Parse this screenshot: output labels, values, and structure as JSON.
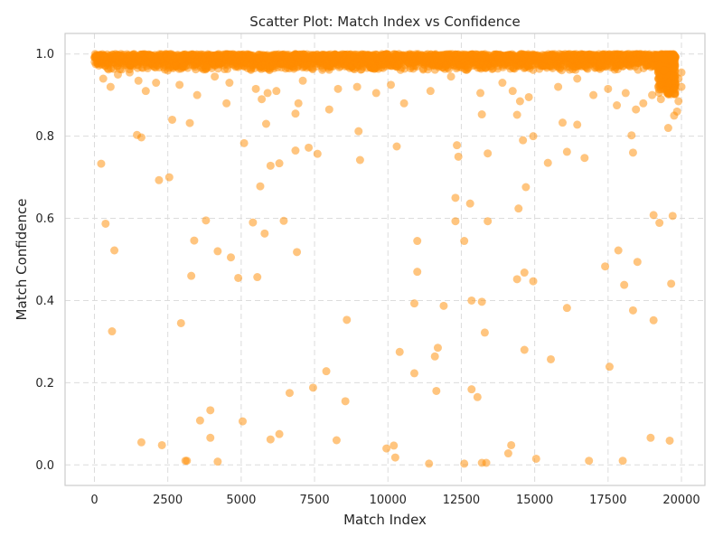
{
  "chart_data": {
    "type": "scatter",
    "title": "Scatter Plot: Match Index vs Confidence",
    "xlabel": "Match Index",
    "ylabel": "Match Confidence",
    "xlim": [
      -1000,
      20800
    ],
    "ylim": [
      -0.05,
      1.05
    ],
    "xticks": [
      0,
      2500,
      5000,
      7500,
      10000,
      12500,
      15000,
      17500,
      20000
    ],
    "yticks": [
      0.0,
      0.2,
      0.4,
      0.6,
      0.8,
      1.0
    ],
    "xtick_labels": [
      "0",
      "2500",
      "5000",
      "7500",
      "10000",
      "12500",
      "15000",
      "17500",
      "20000"
    ],
    "ytick_labels": [
      "0.0",
      "0.2",
      "0.4",
      "0.6",
      "0.8",
      "1.0"
    ],
    "grid": true,
    "marker_color": "#ff8c00",
    "marker_alpha": 0.5,
    "dense_band": {
      "x_range": [
        0,
        19800
      ],
      "y_range": [
        0.96,
        1.0
      ],
      "note": "approx. 19800 points concentrated near 1.0"
    },
    "points": [
      [
        230,
        0.733
      ],
      [
        380,
        0.587
      ],
      [
        600,
        0.325
      ],
      [
        680,
        0.522
      ],
      [
        1450,
        0.803
      ],
      [
        1600,
        0.797
      ],
      [
        1600,
        0.055
      ],
      [
        2200,
        0.693
      ],
      [
        2300,
        0.048
      ],
      [
        2550,
        0.7
      ],
      [
        2650,
        0.84
      ],
      [
        2950,
        0.345
      ],
      [
        3100,
        0.01
      ],
      [
        3150,
        0.01
      ],
      [
        3250,
        0.832
      ],
      [
        3300,
        0.46
      ],
      [
        3400,
        0.546
      ],
      [
        3600,
        0.108
      ],
      [
        3800,
        0.595
      ],
      [
        3950,
        0.133
      ],
      [
        3950,
        0.066
      ],
      [
        4200,
        0.52
      ],
      [
        4200,
        0.008
      ],
      [
        4650,
        0.505
      ],
      [
        4900,
        0.455
      ],
      [
        5050,
        0.106
      ],
      [
        5100,
        0.783
      ],
      [
        5400,
        0.59
      ],
      [
        5550,
        0.457
      ],
      [
        5650,
        0.678
      ],
      [
        5800,
        0.563
      ],
      [
        5850,
        0.83
      ],
      [
        6000,
        0.728
      ],
      [
        6000,
        0.062
      ],
      [
        6300,
        0.734
      ],
      [
        6300,
        0.075
      ],
      [
        6450,
        0.594
      ],
      [
        6650,
        0.175
      ],
      [
        6900,
        0.518
      ],
      [
        6850,
        0.765
      ],
      [
        7300,
        0.772
      ],
      [
        7450,
        0.188
      ],
      [
        7600,
        0.757
      ],
      [
        7900,
        0.228
      ],
      [
        8250,
        0.06
      ],
      [
        8550,
        0.155
      ],
      [
        8600,
        0.353
      ],
      [
        9000,
        0.812
      ],
      [
        9050,
        0.742
      ],
      [
        9950,
        0.04
      ],
      [
        10200,
        0.047
      ],
      [
        10250,
        0.018
      ],
      [
        10300,
        0.775
      ],
      [
        10400,
        0.275
      ],
      [
        10900,
        0.393
      ],
      [
        10900,
        0.223
      ],
      [
        11000,
        0.545
      ],
      [
        11000,
        0.47
      ],
      [
        11400,
        0.003
      ],
      [
        11600,
        0.264
      ],
      [
        11650,
        0.18
      ],
      [
        11700,
        0.285
      ],
      [
        11900,
        0.387
      ],
      [
        12300,
        0.65
      ],
      [
        12300,
        0.593
      ],
      [
        12350,
        0.778
      ],
      [
        12400,
        0.75
      ],
      [
        12600,
        0.545
      ],
      [
        12600,
        0.003
      ],
      [
        12800,
        0.636
      ],
      [
        12850,
        0.4
      ],
      [
        12850,
        0.184
      ],
      [
        13050,
        0.165
      ],
      [
        13200,
        0.853
      ],
      [
        13200,
        0.397
      ],
      [
        13300,
        0.322
      ],
      [
        13200,
        0.005
      ],
      [
        13350,
        0.005
      ],
      [
        13400,
        0.758
      ],
      [
        13400,
        0.593
      ],
      [
        14100,
        0.028
      ],
      [
        14200,
        0.048
      ],
      [
        14400,
        0.852
      ],
      [
        14400,
        0.452
      ],
      [
        14450,
        0.624
      ],
      [
        14600,
        0.79
      ],
      [
        14700,
        0.676
      ],
      [
        14650,
        0.468
      ],
      [
        14650,
        0.28
      ],
      [
        14950,
        0.8
      ],
      [
        14950,
        0.447
      ],
      [
        15050,
        0.015
      ],
      [
        15450,
        0.735
      ],
      [
        15550,
        0.257
      ],
      [
        15950,
        0.833
      ],
      [
        16100,
        0.762
      ],
      [
        16100,
        0.382
      ],
      [
        16450,
        0.828
      ],
      [
        16700,
        0.747
      ],
      [
        16850,
        0.01
      ],
      [
        17400,
        0.483
      ],
      [
        17550,
        0.239
      ],
      [
        17850,
        0.522
      ],
      [
        18000,
        0.01
      ],
      [
        18050,
        0.438
      ],
      [
        18300,
        0.802
      ],
      [
        18350,
        0.76
      ],
      [
        18350,
        0.376
      ],
      [
        18500,
        0.494
      ],
      [
        18950,
        0.066
      ],
      [
        19050,
        0.608
      ],
      [
        19050,
        0.352
      ],
      [
        19250,
        0.589
      ],
      [
        19550,
        0.82
      ],
      [
        19600,
        0.059
      ],
      [
        19650,
        0.441
      ],
      [
        19700,
        0.606
      ],
      [
        19750,
        0.85
      ],
      [
        19850,
        0.86
      ],
      [
        300,
        0.94
      ],
      [
        550,
        0.92
      ],
      [
        800,
        0.95
      ],
      [
        1200,
        0.955
      ],
      [
        1500,
        0.935
      ],
      [
        1750,
        0.91
      ],
      [
        2100,
        0.93
      ],
      [
        2500,
        0.96
      ],
      [
        2900,
        0.925
      ],
      [
        3500,
        0.9
      ],
      [
        4100,
        0.945
      ],
      [
        4500,
        0.88
      ],
      [
        4600,
        0.93
      ],
      [
        5500,
        0.915
      ],
      [
        5700,
        0.89
      ],
      [
        5900,
        0.905
      ],
      [
        6200,
        0.91
      ],
      [
        6850,
        0.855
      ],
      [
        6950,
        0.88
      ],
      [
        7100,
        0.935
      ],
      [
        8000,
        0.865
      ],
      [
        8300,
        0.915
      ],
      [
        8950,
        0.92
      ],
      [
        9600,
        0.905
      ],
      [
        10100,
        0.925
      ],
      [
        10550,
        0.88
      ],
      [
        11450,
        0.91
      ],
      [
        12150,
        0.945
      ],
      [
        13150,
        0.905
      ],
      [
        13900,
        0.93
      ],
      [
        14250,
        0.91
      ],
      [
        14500,
        0.885
      ],
      [
        14800,
        0.895
      ],
      [
        15800,
        0.92
      ],
      [
        16450,
        0.94
      ],
      [
        17000,
        0.9
      ],
      [
        17500,
        0.915
      ],
      [
        17800,
        0.875
      ],
      [
        18100,
        0.905
      ],
      [
        18450,
        0.865
      ],
      [
        18700,
        0.88
      ],
      [
        19000,
        0.9
      ],
      [
        19300,
        0.89
      ],
      [
        19600,
        0.905
      ],
      [
        19900,
        0.885
      ],
      [
        20000,
        0.92
      ],
      [
        19900,
        0.94
      ],
      [
        20000,
        0.955
      ]
    ]
  }
}
